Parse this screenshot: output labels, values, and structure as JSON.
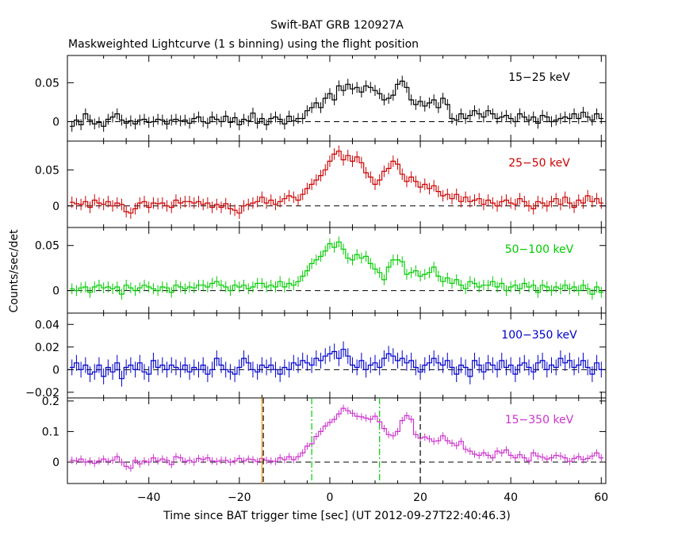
{
  "title": "Swift-BAT GRB 120927A",
  "subtitle": "Maskweighted Lightcurve (1 s binning) using the flight position",
  "xlabel": "Time since BAT trigger time [sec] (UT 2012-09-27T22:40:46.3)",
  "ylabel": "Counts/sec/det",
  "colors": {
    "axis": "#000000",
    "dashed_zero": "#000000",
    "marker_orange": "#ff9900",
    "marker_green": "#00cc00",
    "marker_black": "#000000"
  },
  "chart_data": {
    "type": "line",
    "step": true,
    "shared_x": {
      "xlim": [
        -58,
        61
      ],
      "ticks": [
        -40,
        -20,
        0,
        20,
        40,
        60
      ],
      "tick_labels": [
        "−40",
        "−20",
        "0",
        "20",
        "40",
        "60"
      ],
      "bin_width": 1
    },
    "panels": [
      {
        "name": "15−25 keV",
        "color": "#000000",
        "ylim": [
          -0.025,
          0.085
        ],
        "yticks": [
          0,
          0.05
        ],
        "ytick_labels": [
          "0",
          "0.05"
        ],
        "x_start": -57,
        "values": [
          -0.006,
          0.002,
          -0.004,
          0.01,
          0.002,
          -0.003,
          -0.001,
          -0.006,
          0.003,
          0.006,
          0.01,
          0.002,
          -0.002,
          0.001,
          -0.003,
          0.002,
          0.003,
          -0.001,
          0.0,
          0.003,
          0.002,
          -0.003,
          0.002,
          0.003,
          0.001,
          0.002,
          -0.002,
          0.004,
          0.006,
          0.0,
          -0.002,
          0.006,
          0.003,
          0.0,
          0.007,
          -0.001,
          0.005,
          -0.004,
          0.003,
          0.001,
          0.011,
          -0.002,
          0.004,
          -0.004,
          0.004,
          0.006,
          0.003,
          -0.003,
          0.007,
          0.001,
          0.004,
          0.004,
          0.014,
          0.018,
          0.024,
          0.018,
          0.03,
          0.036,
          0.028,
          0.046,
          0.04,
          0.048,
          0.042,
          0.044,
          0.038,
          0.046,
          0.044,
          0.04,
          0.036,
          0.028,
          0.03,
          0.034,
          0.048,
          0.052,
          0.044,
          0.028,
          0.022,
          0.026,
          0.02,
          0.024,
          0.028,
          0.018,
          0.03,
          0.022,
          0.004,
          0.002,
          0.01,
          0.004,
          0.008,
          0.014,
          0.01,
          0.006,
          0.014,
          0.01,
          0.004,
          0.006,
          0.008,
          0.004,
          0.0,
          0.01,
          0.006,
          0.002,
          0.006,
          -0.002,
          0.008,
          0.006,
          0.0,
          0.002,
          0.004,
          0.006,
          0.004,
          0.01,
          0.004,
          0.012,
          0.006,
          0.002,
          0.01,
          0.004,
          -0.01
        ],
        "errors": 0.007
      },
      {
        "name": "25−50 keV",
        "color": "#cc0000",
        "ylim": [
          -0.03,
          0.09
        ],
        "yticks": [
          0,
          0.05
        ],
        "ytick_labels": [
          "0",
          "0.05"
        ],
        "x_start": -57,
        "values": [
          0.005,
          0.003,
          0.002,
          0.006,
          -0.002,
          0.008,
          0.004,
          0.002,
          0.006,
          0.0,
          0.004,
          0.002,
          -0.008,
          -0.01,
          -0.004,
          0.004,
          0.006,
          -0.002,
          0.004,
          0.003,
          0.004,
          0.0,
          -0.002,
          0.008,
          0.004,
          0.006,
          0.006,
          0.004,
          0.006,
          0.002,
          0.004,
          -0.002,
          0.002,
          -0.002,
          0.003,
          -0.004,
          -0.006,
          -0.01,
          0.0,
          0.002,
          0.004,
          0.006,
          0.012,
          0.004,
          0.008,
          0.002,
          0.006,
          0.01,
          0.014,
          0.012,
          0.008,
          0.016,
          0.024,
          0.03,
          0.036,
          0.042,
          0.05,
          0.062,
          0.072,
          0.076,
          0.064,
          0.07,
          0.062,
          0.068,
          0.06,
          0.046,
          0.04,
          0.03,
          0.036,
          0.048,
          0.052,
          0.062,
          0.058,
          0.044,
          0.034,
          0.04,
          0.034,
          0.026,
          0.03,
          0.024,
          0.028,
          0.02,
          0.014,
          0.016,
          0.01,
          0.016,
          0.006,
          0.012,
          0.006,
          0.008,
          0.01,
          0.002,
          0.008,
          0.004,
          0.0,
          0.006,
          0.008,
          0.004,
          0.002,
          0.01,
          0.006,
          0.0,
          -0.004,
          0.006,
          0.004,
          0.0,
          0.006,
          0.01,
          0.002,
          0.012,
          0.004,
          -0.002,
          0.008,
          0.004,
          0.014,
          0.006,
          0.01,
          0.004,
          0.006
        ],
        "errors": 0.008
      },
      {
        "name": "50−100 keV",
        "color": "#00cc00",
        "ylim": [
          -0.025,
          0.07
        ],
        "yticks": [
          0,
          0.05
        ],
        "ytick_labels": [
          "0",
          "0.05"
        ],
        "x_start": -57,
        "values": [
          0.002,
          0.0,
          0.003,
          0.004,
          -0.002,
          0.004,
          0.006,
          0.003,
          0.004,
          0.002,
          0.004,
          -0.004,
          0.006,
          0.003,
          0.0,
          0.003,
          0.006,
          0.004,
          0.002,
          0.0,
          0.004,
          0.003,
          -0.002,
          0.006,
          0.004,
          0.002,
          0.004,
          0.003,
          0.006,
          0.006,
          0.004,
          0.008,
          0.01,
          0.006,
          0.004,
          0.0,
          0.006,
          0.004,
          0.006,
          0.002,
          0.004,
          0.008,
          0.008,
          0.004,
          0.006,
          0.004,
          0.01,
          0.004,
          0.008,
          0.006,
          0.01,
          0.016,
          0.022,
          0.03,
          0.034,
          0.038,
          0.044,
          0.052,
          0.048,
          0.054,
          0.046,
          0.036,
          0.034,
          0.04,
          0.036,
          0.038,
          0.03,
          0.024,
          0.02,
          0.012,
          0.026,
          0.034,
          0.034,
          0.032,
          0.018,
          0.02,
          0.022,
          0.016,
          0.018,
          0.02,
          0.026,
          0.016,
          0.01,
          0.014,
          0.008,
          0.012,
          0.006,
          0.002,
          0.01,
          0.008,
          0.004,
          0.006,
          0.006,
          0.01,
          0.004,
          0.008,
          0.0,
          0.004,
          0.006,
          0.002,
          0.008,
          0.004,
          0.006,
          -0.002,
          0.006,
          0.004,
          0.0,
          0.004,
          0.002,
          0.006,
          0.002,
          0.004,
          0.0,
          0.006,
          0.002,
          -0.004,
          0.004,
          -0.002
        ],
        "errors": 0.006
      },
      {
        "name": "100−350 keV",
        "color": "#0000cc",
        "ylim": [
          -0.025,
          0.05
        ],
        "yticks": [
          -0.02,
          0,
          0.02,
          0.04
        ],
        "ytick_labels": [
          "−0.02",
          "0",
          "0.02",
          "0.04"
        ],
        "x_start": -57,
        "values": [
          0.002,
          0.006,
          0.0,
          0.004,
          -0.004,
          -0.002,
          0.004,
          -0.006,
          0.002,
          -0.002,
          0.006,
          -0.008,
          0.002,
          0.004,
          0.0,
          0.006,
          -0.002,
          -0.004,
          0.008,
          0.002,
          0.004,
          0.0,
          0.004,
          0.002,
          0.0,
          0.004,
          -0.002,
          0.002,
          0.0,
          0.004,
          -0.004,
          0.0,
          0.01,
          0.004,
          0.0,
          -0.002,
          -0.004,
          0.002,
          0.01,
          0.006,
          0.0,
          -0.002,
          0.004,
          0.002,
          0.004,
          0.0,
          -0.004,
          0.002,
          0.0,
          0.006,
          0.004,
          0.008,
          0.006,
          0.004,
          0.01,
          0.008,
          0.012,
          0.014,
          0.016,
          0.01,
          0.018,
          0.012,
          0.004,
          0.002,
          0.008,
          0.0,
          0.004,
          0.006,
          0.002,
          0.01,
          0.014,
          0.012,
          0.008,
          0.01,
          0.006,
          0.008,
          0.002,
          -0.002,
          0.004,
          0.006,
          0.01,
          0.006,
          0.004,
          0.008,
          0.002,
          -0.004,
          0.004,
          0.002,
          -0.006,
          0.008,
          0.004,
          -0.002,
          0.006,
          0.004,
          0.0,
          0.008,
          0.002,
          0.004,
          -0.004,
          0.004,
          0.006,
          0.002,
          -0.002,
          0.006,
          0.008,
          0.0,
          0.004,
          0.002,
          0.01,
          0.006,
          0.008,
          0.002,
          0.004,
          0.008,
          0.002,
          -0.004,
          0.006,
          0.0
        ],
        "errors": 0.007
      },
      {
        "name": "15−350 keV",
        "color": "#cc33cc",
        "ylim": [
          -0.07,
          0.21
        ],
        "yticks": [
          0,
          0.1,
          0.2
        ],
        "ytick_labels": [
          "0",
          "0.1",
          "0.2"
        ],
        "x_start": -57,
        "values": [
          0.006,
          0.004,
          0.01,
          0.0,
          0.004,
          -0.004,
          0.004,
          0.01,
          0.002,
          0.006,
          0.018,
          0.0,
          -0.014,
          -0.02,
          0.006,
          -0.006,
          0.004,
          0.0,
          0.014,
          0.004,
          0.01,
          0.006,
          -0.008,
          0.018,
          0.014,
          0.002,
          0.006,
          0.0,
          0.012,
          0.008,
          0.014,
          0.004,
          0.002,
          0.006,
          0.006,
          0.0,
          0.004,
          0.012,
          0.004,
          0.01,
          0.008,
          0.002,
          0.012,
          0.006,
          0.004,
          0.002,
          0.014,
          0.008,
          0.018,
          0.008,
          0.018,
          0.03,
          0.052,
          0.06,
          0.084,
          0.1,
          0.118,
          0.13,
          0.14,
          0.158,
          0.176,
          0.168,
          0.16,
          0.15,
          0.148,
          0.144,
          0.14,
          0.15,
          0.132,
          0.11,
          0.09,
          0.086,
          0.1,
          0.136,
          0.152,
          0.14,
          0.09,
          0.078,
          0.082,
          0.076,
          0.068,
          0.07,
          0.086,
          0.07,
          0.062,
          0.054,
          0.068,
          0.042,
          0.036,
          0.026,
          0.022,
          0.03,
          0.022,
          0.014,
          0.036,
          0.03,
          0.04,
          0.022,
          0.014,
          0.024,
          0.014,
          0.004,
          0.03,
          0.02,
          0.016,
          0.01,
          0.014,
          0.022,
          0.02,
          0.014,
          0.002,
          0.012,
          0.018,
          0.008,
          0.012,
          0.02,
          0.03,
          0.014,
          0.01
        ],
        "errors": 0.012,
        "markers": [
          {
            "x": -15,
            "color": "#ff9900",
            "style": "solid"
          },
          {
            "x": -14.7,
            "color": "#000000",
            "style": "dashed"
          },
          {
            "x": -4,
            "color": "#00cc00",
            "style": "dashdot"
          },
          {
            "x": 11,
            "color": "#00cc00",
            "style": "dashdot"
          },
          {
            "x": 20,
            "color": "#000000",
            "style": "dashed"
          }
        ]
      }
    ]
  }
}
